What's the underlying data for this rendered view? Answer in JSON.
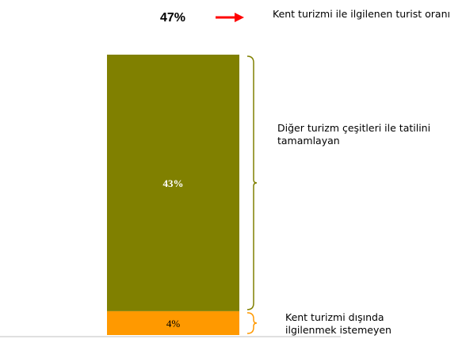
{
  "chart_data": {
    "type": "bar",
    "stacked": true,
    "categories": [
      null
    ],
    "series": [
      {
        "name": "Kent turizmi dışında ilgilenmek istemeyen",
        "color": "#ff9900",
        "values": [
          4
        ],
        "value_labels": [
          "4%"
        ]
      },
      {
        "name": "Diğer turizm çeşitleri ile tatilini tamamlayan",
        "color": "#808000",
        "values": [
          43
        ],
        "value_labels": [
          "43%"
        ]
      }
    ],
    "total": {
      "value": 47,
      "label": "47%"
    },
    "total_annotation": "Kent turizmi ile ilgilenen turist oranı"
  }
}
